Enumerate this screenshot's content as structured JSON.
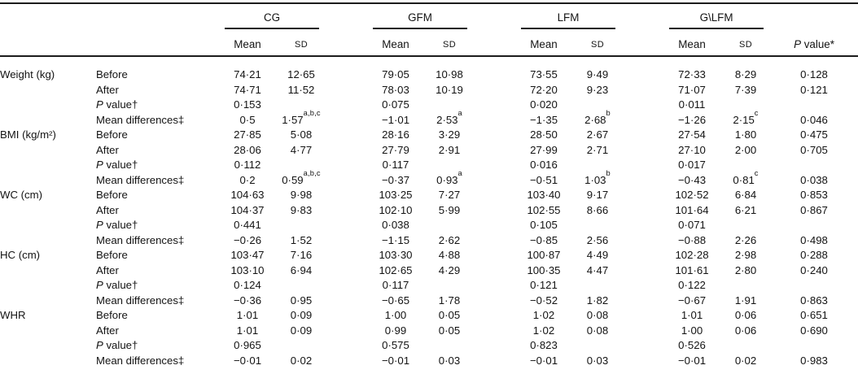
{
  "page": {
    "background": "#ffffff",
    "text_color": "#131313",
    "rule_color": "#1c1c1c"
  },
  "table": {
    "groups": [
      {
        "label": "CG"
      },
      {
        "label": "GFM"
      },
      {
        "label": "LFM"
      },
      {
        "label": "G\\LFM"
      }
    ],
    "subheaders": {
      "mean": "Mean",
      "sd": "SD"
    },
    "p_value_header": "P value*",
    "sections": [
      {
        "measure": "Weight (kg)",
        "rows": [
          {
            "label": "Before",
            "values": [
              [
                "74·21",
                "12·65"
              ],
              [
                "79·05",
                "10·98"
              ],
              [
                "73·55",
                "9·49"
              ],
              [
                "72·33",
                "8·29"
              ]
            ],
            "p": "0·128"
          },
          {
            "label": "After",
            "values": [
              [
                "74·71",
                "11·52"
              ],
              [
                "78·03",
                "10·19"
              ],
              [
                "72·20",
                "9·23"
              ],
              [
                "71·07",
                "7·39"
              ]
            ],
            "p": "0·121"
          },
          {
            "label": "P value†",
            "values": [
              [
                "0·153",
                ""
              ],
              [
                "0·075",
                ""
              ],
              [
                "0·020",
                ""
              ],
              [
                "0·011",
                ""
              ]
            ],
            "p": ""
          },
          {
            "label": "Mean differences‡",
            "values": [
              [
                "0·5",
                "1·57",
                "a,b,c"
              ],
              [
                "−1·01",
                "2·53",
                "a"
              ],
              [
                "−1·35",
                "2·68",
                "b"
              ],
              [
                "−1·26",
                "2·15",
                "c"
              ]
            ],
            "p": "0·046"
          }
        ]
      },
      {
        "measure": "BMI (kg/m²)",
        "rows": [
          {
            "label": "Before",
            "values": [
              [
                "27·85",
                "5·08"
              ],
              [
                "28·16",
                "3·29"
              ],
              [
                "28·50",
                "2·67"
              ],
              [
                "27·54",
                "1·80"
              ]
            ],
            "p": "0·475"
          },
          {
            "label": "After",
            "values": [
              [
                "28·06",
                "4·77"
              ],
              [
                "27·79",
                "2·91"
              ],
              [
                "27·99",
                "2·71"
              ],
              [
                "27·10",
                "2·00"
              ]
            ],
            "p": "0·705"
          },
          {
            "label": "P value†",
            "values": [
              [
                "0·112",
                ""
              ],
              [
                "0·117",
                ""
              ],
              [
                "0·016",
                ""
              ],
              [
                "0·017",
                ""
              ]
            ],
            "p": ""
          },
          {
            "label": "Mean differences‡",
            "values": [
              [
                "0·2",
                "0·59",
                "a,b,c"
              ],
              [
                "−0·37",
                "0·93",
                "a"
              ],
              [
                "−0·51",
                "1·03",
                "b"
              ],
              [
                "−0·43",
                "0·81",
                "c"
              ]
            ],
            "p": "0·038"
          }
        ]
      },
      {
        "measure": "WC (cm)",
        "rows": [
          {
            "label": "Before",
            "values": [
              [
                "104·63",
                "9·98"
              ],
              [
                "103·25",
                "7·27"
              ],
              [
                "103·40",
                "9·17"
              ],
              [
                "102·52",
                "6·84"
              ]
            ],
            "p": "0·853"
          },
          {
            "label": "After",
            "values": [
              [
                "104·37",
                "9·83"
              ],
              [
                "102·10",
                "5·99"
              ],
              [
                "102·55",
                "8·66"
              ],
              [
                "101·64",
                "6·21"
              ]
            ],
            "p": "0·867"
          },
          {
            "label": "P value†",
            "values": [
              [
                "0·441",
                ""
              ],
              [
                "0·038",
                ""
              ],
              [
                "0·105",
                ""
              ],
              [
                "0·071",
                ""
              ]
            ],
            "p": ""
          },
          {
            "label": "Mean differences‡",
            "values": [
              [
                "−0·26",
                "1·52"
              ],
              [
                "−1·15",
                "2·62"
              ],
              [
                "−0·85",
                "2·56"
              ],
              [
                "−0·88",
                "2·26"
              ]
            ],
            "p": "0·498"
          }
        ]
      },
      {
        "measure": "HC (cm)",
        "rows": [
          {
            "label": "Before",
            "values": [
              [
                "103·47",
                "7·16"
              ],
              [
                "103·30",
                "4·88"
              ],
              [
                "100·87",
                "4·49"
              ],
              [
                "102·28",
                "2·98"
              ]
            ],
            "p": "0·288"
          },
          {
            "label": "After",
            "values": [
              [
                "103·10",
                "6·94"
              ],
              [
                "102·65",
                "4·29"
              ],
              [
                "100·35",
                "4·47"
              ],
              [
                "101·61",
                "2·80"
              ]
            ],
            "p": "0·240"
          },
          {
            "label": "P value†",
            "values": [
              [
                "0·124",
                ""
              ],
              [
                "0·117",
                ""
              ],
              [
                "0·121",
                ""
              ],
              [
                "0·122",
                ""
              ]
            ],
            "p": ""
          },
          {
            "label": "Mean differences‡",
            "values": [
              [
                "−0·36",
                "0·95"
              ],
              [
                "−0·65",
                "1·78"
              ],
              [
                "−0·52",
                "1·82"
              ],
              [
                "−0·67",
                "1·91"
              ]
            ],
            "p": "0·863"
          }
        ]
      },
      {
        "measure": "WHR",
        "rows": [
          {
            "label": "Before",
            "values": [
              [
                "1·01",
                "0·09"
              ],
              [
                "1·00",
                "0·05"
              ],
              [
                "1·02",
                "0·08"
              ],
              [
                "1·01",
                "0·06"
              ]
            ],
            "p": "0·651"
          },
          {
            "label": "After",
            "values": [
              [
                "1·01",
                "0·09"
              ],
              [
                "0·99",
                "0·05"
              ],
              [
                "1·02",
                "0·08"
              ],
              [
                "1·00",
                "0·06"
              ]
            ],
            "p": "0·690"
          },
          {
            "label": "P value†",
            "values": [
              [
                "0·965",
                ""
              ],
              [
                "0·575",
                ""
              ],
              [
                "0·823",
                ""
              ],
              [
                "0·526",
                ""
              ]
            ],
            "p": ""
          },
          {
            "label": "Mean differences‡",
            "values": [
              [
                "−0·01",
                "0·02"
              ],
              [
                "−0·01",
                "0·03"
              ],
              [
                "−0·01",
                "0·03"
              ],
              [
                "−0·01",
                "0·02"
              ]
            ],
            "p": "0·983"
          }
        ]
      }
    ]
  }
}
